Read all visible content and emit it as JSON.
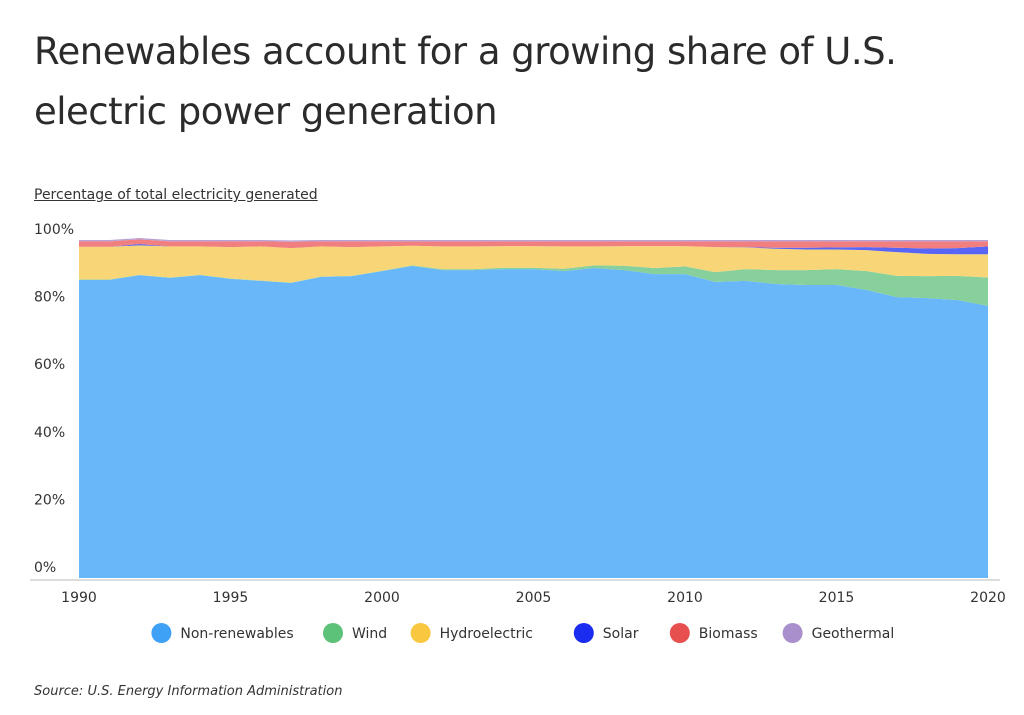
{
  "title": "Renewables account for a growing share of U.S. electric power generation",
  "subtitle": "Percentage of total electricity generated",
  "source": "Source:  U.S. Energy Information Administration",
  "chart_data": {
    "type": "area",
    "stacked": true,
    "title": "Renewables account for a growing share of U.S. electric power generation",
    "ylabel": "Percentage of total electricity generated",
    "xlabel": "",
    "xlim": [
      1990,
      2020
    ],
    "ylim": [
      0,
      100
    ],
    "x_ticks": [
      "1990",
      "1995",
      "2000",
      "2005",
      "2010",
      "2015",
      "2020"
    ],
    "y_ticks": [
      "0%",
      "20%",
      "40%",
      "60%",
      "80%",
      "100%"
    ],
    "grid": false,
    "legend_position": "bottom",
    "x": [
      1990,
      1991,
      1992,
      1993,
      1994,
      1995,
      1996,
      1997,
      1998,
      1999,
      2000,
      2001,
      2002,
      2003,
      2004,
      2005,
      2006,
      2007,
      2008,
      2009,
      2010,
      2011,
      2012,
      2013,
      2014,
      2015,
      2016,
      2017,
      2018,
      2019,
      2020
    ],
    "series": [
      {
        "name": "Non-renewables",
        "color": "#3ea1f5",
        "area_color": "#69b7f9",
        "values": [
          88.2,
          88.2,
          89.6,
          88.8,
          89.6,
          88.5,
          87.9,
          87.3,
          89.1,
          89.3,
          90.8,
          92.3,
          91.1,
          91.1,
          91.4,
          91.4,
          90.8,
          91.7,
          91.1,
          89.9,
          89.9,
          87.6,
          87.9,
          87.0,
          86.7,
          86.7,
          85.2,
          83.1,
          82.8,
          82.2,
          80.5
        ]
      },
      {
        "name": "Wind",
        "color": "#5cc27a",
        "area_color": "#88d09b",
        "values": [
          0.1,
          0.1,
          0.1,
          0.1,
          0.1,
          0.1,
          0.1,
          0.1,
          0.1,
          0.1,
          0.1,
          0.2,
          0.3,
          0.3,
          0.4,
          0.4,
          0.7,
          0.8,
          1.3,
          1.8,
          2.3,
          2.9,
          3.5,
          4.1,
          4.4,
          4.7,
          5.6,
          6.3,
          6.5,
          7.2,
          8.4
        ]
      },
      {
        "name": "Hydroelectric",
        "color": "#f9c840",
        "area_color": "#f8d678",
        "values": [
          9.7,
          9.7,
          8.7,
          9.2,
          8.4,
          9.3,
          10.1,
          10.2,
          8.9,
          8.5,
          7.2,
          5.8,
          6.7,
          6.7,
          6.4,
          6.4,
          6.6,
          5.6,
          5.8,
          6.5,
          6.0,
          7.4,
          6.4,
          6.3,
          6.1,
          5.8,
          6.2,
          7.0,
          6.6,
          6.4,
          6.9
        ]
      },
      {
        "name": "Solar",
        "color": "#1a2cf0",
        "area_color": "#5865f5",
        "values": [
          0,
          0,
          0.4,
          0,
          0,
          0,
          0,
          0,
          0,
          0,
          0,
          0,
          0,
          0,
          0,
          0,
          0,
          0,
          0,
          0,
          0,
          0,
          0.1,
          0.3,
          0.5,
          0.6,
          0.9,
          1.3,
          1.6,
          1.8,
          2.3
        ]
      },
      {
        "name": "Biomass",
        "color": "#e85050",
        "area_color": "#f27f7f",
        "values": [
          1.6,
          1.6,
          1.4,
          1.5,
          1.5,
          1.7,
          1.5,
          1.9,
          1.5,
          1.7,
          1.5,
          1.3,
          1.5,
          1.5,
          1.4,
          1.4,
          1.5,
          1.5,
          1.4,
          1.4,
          1.4,
          1.7,
          1.7,
          1.9,
          1.9,
          1.8,
          1.7,
          1.9,
          2.1,
          2.0,
          1.5
        ]
      },
      {
        "name": "Geothermal",
        "color": "#a98fcc",
        "area_color": "#b9a0d4",
        "values": [
          0.4,
          0.4,
          0.4,
          0.4,
          0.4,
          0.4,
          0.4,
          0.4,
          0.4,
          0.4,
          0.4,
          0.4,
          0.4,
          0.4,
          0.4,
          0.4,
          0.4,
          0.4,
          0.4,
          0.4,
          0.4,
          0.4,
          0.4,
          0.4,
          0.4,
          0.4,
          0.4,
          0.4,
          0.4,
          0.4,
          0.4
        ]
      }
    ]
  }
}
